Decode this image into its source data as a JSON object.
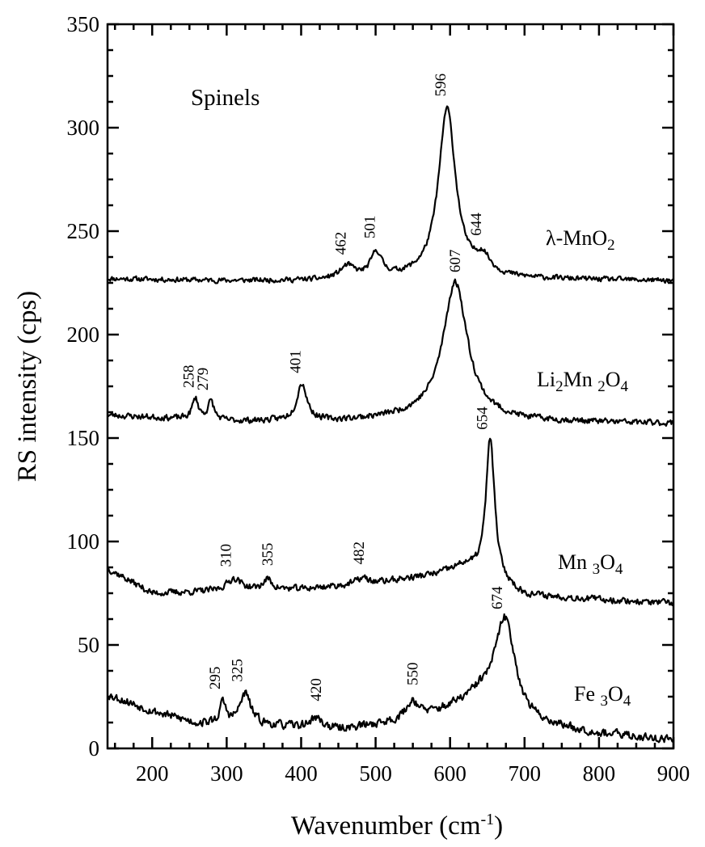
{
  "chart_data": {
    "type": "line",
    "title": "Spinels",
    "xlabel": "Wavenumber (cm",
    "xlabel_superscript": "-1",
    "xlabel_close": ")",
    "ylabel": "RS intensity (cps)",
    "xlim": [
      140,
      900
    ],
    "ylim": [
      0,
      350
    ],
    "grid": false,
    "x_ticks": [
      200,
      300,
      400,
      500,
      600,
      700,
      800,
      900
    ],
    "y_ticks": [
      0,
      50,
      100,
      150,
      200,
      250,
      300,
      350
    ],
    "series": [
      {
        "label_parts": [
          "λ-MnO",
          "2",
          ""
        ],
        "baseline": [
          [
            140,
            227
          ],
          [
            300,
            226
          ],
          [
            420,
            226
          ],
          [
            540,
            227
          ],
          [
            650,
            227
          ],
          [
            900,
            226
          ]
        ],
        "peaks": [
          {
            "x": 462,
            "height": 6,
            "width": 12,
            "label": "462"
          },
          {
            "x": 501,
            "height": 12,
            "width": 9,
            "label": "501"
          },
          {
            "x": 596,
            "height": 82,
            "width": 14,
            "label": "596"
          },
          {
            "x": 644,
            "height": 8,
            "width": 12,
            "label": "644"
          }
        ],
        "noise": 1.1,
        "seed": 11
      },
      {
        "label_parts": [
          "Li",
          "2",
          "Mn ",
          "2",
          "O",
          "4"
        ],
        "baseline": [
          [
            140,
            161
          ],
          [
            300,
            158
          ],
          [
            450,
            158
          ],
          [
            560,
            160
          ],
          [
            700,
            158
          ],
          [
            900,
            157
          ]
        ],
        "peaks": [
          {
            "x": 258,
            "height": 10,
            "width": 5,
            "label": "258"
          },
          {
            "x": 279,
            "height": 9,
            "width": 5,
            "label": "279"
          },
          {
            "x": 401,
            "height": 18,
            "width": 8,
            "label": "401"
          },
          {
            "x": 607,
            "height": 66,
            "width": 20,
            "label": "607"
          }
        ],
        "noise": 1.3,
        "seed": 23
      },
      {
        "label_parts": [
          "Mn ",
          "3",
          "O",
          "4"
        ],
        "baseline": [
          [
            140,
            87
          ],
          [
            200,
            75
          ],
          [
            300,
            76
          ],
          [
            400,
            77
          ],
          [
            500,
            80
          ],
          [
            580,
            84
          ],
          [
            620,
            88
          ],
          [
            700,
            74
          ],
          [
            800,
            72
          ],
          [
            900,
            70
          ]
        ],
        "peaks": [
          {
            "x": 310,
            "height": 6,
            "width": 12,
            "label": "310"
          },
          {
            "x": 355,
            "height": 5,
            "width": 7,
            "label": "355"
          },
          {
            "x": 482,
            "height": 3,
            "width": 9,
            "label": "482"
          },
          {
            "x": 654,
            "height": 68,
            "width": 7,
            "label": "654"
          }
        ],
        "noise": 1.4,
        "seed": 37
      },
      {
        "label_parts": [
          "Fe ",
          "3",
          "O",
          "4"
        ],
        "baseline": [
          [
            140,
            26
          ],
          [
            200,
            18
          ],
          [
            260,
            12
          ],
          [
            350,
            11
          ],
          [
            450,
            9
          ],
          [
            560,
            14
          ],
          [
            640,
            24
          ],
          [
            700,
            12
          ],
          [
            800,
            7
          ],
          [
            900,
            4
          ]
        ],
        "peaks": [
          {
            "x": 295,
            "height": 10,
            "width": 5,
            "label": "295"
          },
          {
            "x": 325,
            "height": 15,
            "width": 9,
            "label": "325"
          },
          {
            "x": 420,
            "height": 5,
            "width": 10,
            "label": "420"
          },
          {
            "x": 550,
            "height": 9,
            "width": 11,
            "label": "550"
          },
          {
            "x": 674,
            "height": 46,
            "width": 17,
            "label": "674"
          }
        ],
        "noise": 1.8,
        "seed": 53
      }
    ]
  }
}
